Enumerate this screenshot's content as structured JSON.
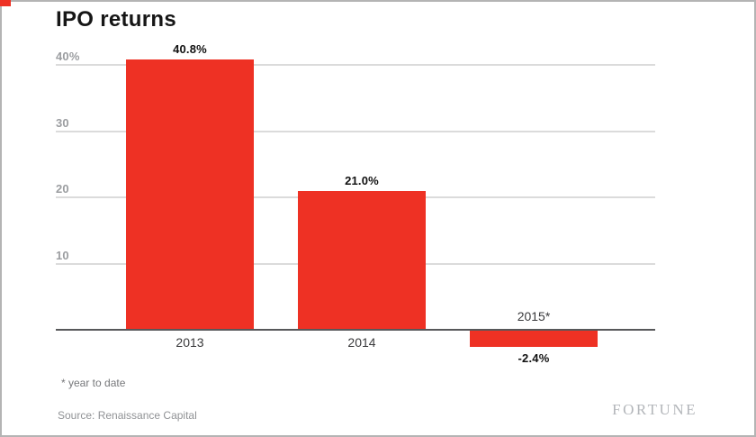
{
  "footnote": "* year to date",
  "source": "Source: Renaissance Capital",
  "brand": "FORTUNE",
  "colors": {
    "bar": "#ee3124",
    "axis": "#57585a",
    "gridline": "#dbdbdb",
    "tick_text": "#9b9da0",
    "border": "#b4b4b4"
  },
  "chart_data": {
    "type": "bar",
    "title": "IPO returns",
    "categories": [
      "2013",
      "2014",
      "2015*"
    ],
    "values": [
      40.8,
      21.0,
      -2.4
    ],
    "value_labels": [
      "40.8%",
      "21.0%",
      "-2.4%"
    ],
    "yticks": [
      {
        "value": 40,
        "label": "40%"
      },
      {
        "value": 30,
        "label": "30"
      },
      {
        "value": 20,
        "label": "20"
      },
      {
        "value": 10,
        "label": "10"
      }
    ],
    "ylim": [
      -5.5,
      45
    ],
    "grid": true,
    "legend": false,
    "xlabel": "",
    "ylabel": ""
  }
}
